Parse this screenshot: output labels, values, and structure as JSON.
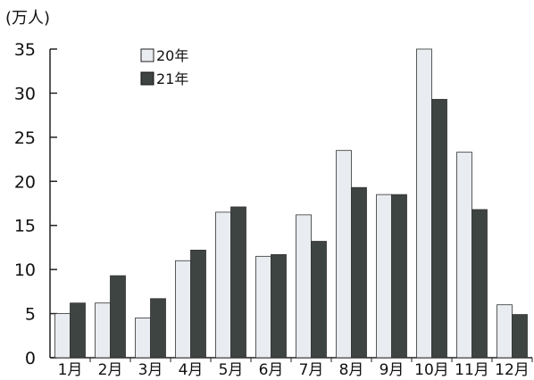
{
  "chart_data": {
    "type": "bar",
    "unit_label": "(万人)",
    "categories": [
      "1月",
      "2月",
      "3月",
      "4月",
      "5月",
      "6月",
      "7月",
      "8月",
      "9月",
      "10月",
      "11月",
      "12月"
    ],
    "series": [
      {
        "name": "20年",
        "color": "#e9ecf0",
        "values": [
          5.0,
          6.2,
          4.5,
          11.0,
          16.5,
          11.5,
          16.2,
          23.5,
          18.5,
          35.0,
          23.3,
          6.0
        ]
      },
      {
        "name": "21年",
        "color": "#3e4442",
        "values": [
          6.2,
          9.3,
          6.7,
          12.2,
          17.1,
          11.7,
          13.2,
          19.3,
          18.5,
          29.3,
          16.8,
          4.9
        ]
      }
    ],
    "ylim": [
      0,
      35
    ],
    "yticks": [
      0,
      5,
      10,
      15,
      20,
      25,
      30,
      35
    ],
    "grid": false,
    "legend_position": "top-left"
  }
}
